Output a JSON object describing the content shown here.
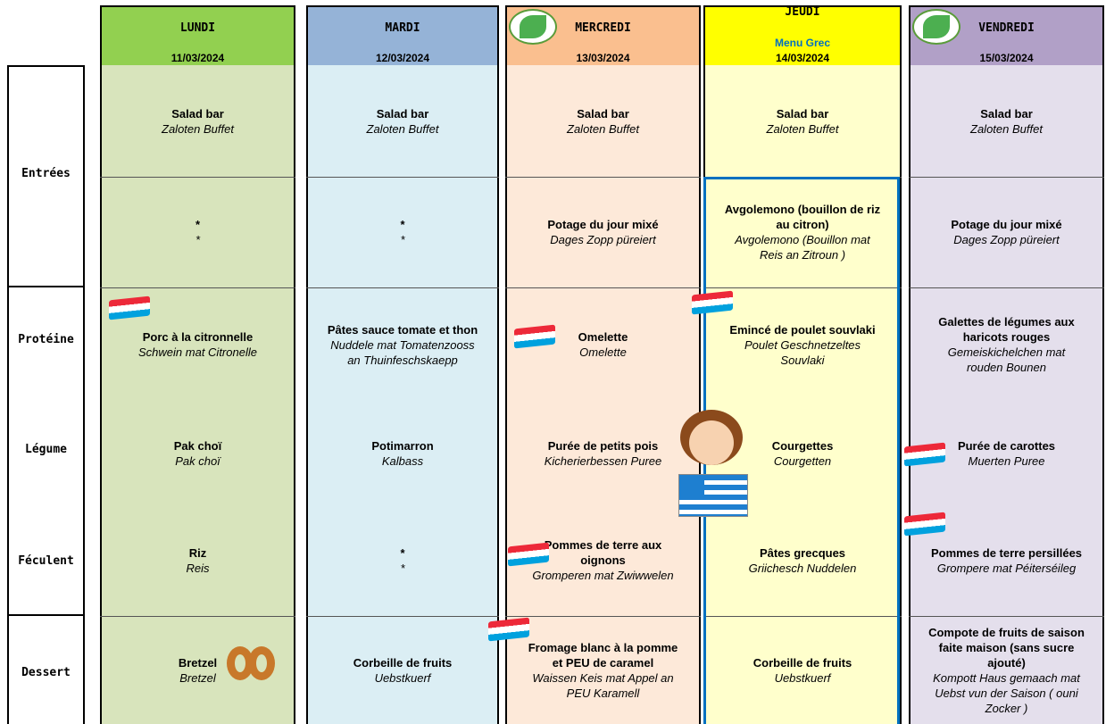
{
  "menu": {
    "days": [
      {
        "name": "LUNDI",
        "date": "11/03/2024"
      },
      {
        "name": "MARDI",
        "date": "12/03/2024"
      },
      {
        "name": "MERCREDI",
        "date": "13/03/2024"
      },
      {
        "name": "JEUDI",
        "note": "Menu Grec",
        "date": "14/03/2024"
      },
      {
        "name": "VENDREDI",
        "date": "15/03/2024"
      }
    ],
    "row_labels": [
      "Entrées",
      "Protéine",
      "Légume",
      "Féculent",
      "Dessert"
    ],
    "rows": [
      [
        {
          "fr": "Salad bar",
          "lb": "Zaloten Buffet"
        },
        {
          "fr": "Salad bar",
          "lb": "Zaloten Buffet"
        },
        {
          "fr": "Salad bar",
          "lb": "Zaloten Buffet"
        },
        {
          "fr": "Salad bar",
          "lb": "Zaloten Buffet"
        },
        {
          "fr": "Salad bar",
          "lb": "Zaloten Buffet"
        }
      ],
      [
        {
          "fr": "*",
          "lb": "*"
        },
        {
          "fr": "*",
          "lb": "*"
        },
        {
          "fr": "Potage du jour mixé",
          "lb": "Dages Zopp püreiert"
        },
        {
          "fr": "Avgolemono (bouillon de riz au citron)",
          "lb": "Avgolemono (Bouillon mat Reis an Zitroun )"
        },
        {
          "fr": "Potage du jour mixé",
          "lb": "Dages Zopp püreiert"
        }
      ],
      [
        {
          "fr": "Porc à la citronnelle",
          "lb": "Schwein mat Citronelle"
        },
        {
          "fr": "Pâtes sauce tomate et thon",
          "lb": "Nuddele mat Tomatenzooss an Thuinfeschskaepp"
        },
        {
          "fr": "Omelette",
          "lb": "Omelette"
        },
        {
          "fr": "Emincé de poulet souvlaki",
          "lb": "Poulet Geschnetzeltes Souvlaki"
        },
        {
          "fr": "Galettes de légumes aux haricots rouges",
          "lb": "Gemeiskichelchen mat rouden Bounen"
        }
      ],
      [
        {
          "fr": "Pak choï",
          "lb": "Pak choï"
        },
        {
          "fr": "Potimarron",
          "lb": "Kalbass"
        },
        {
          "fr": "Purée de petits pois",
          "lb": "Kicherierbessen Puree"
        },
        {
          "fr": "Courgettes",
          "lb": "Courgetten"
        },
        {
          "fr": "Purée de carottes",
          "lb": "Muerten Puree"
        }
      ],
      [
        {
          "fr": "Riz",
          "lb": "Reis"
        },
        {
          "fr": "*",
          "lb": "*"
        },
        {
          "fr": "Pommes de terre aux oignons",
          "lb": "Gromperen mat Zwiwwelen"
        },
        {
          "fr": "Pâtes grecques",
          "lb": "Griichesch Nuddelen"
        },
        {
          "fr": "Pommes de terre persillées",
          "lb": "Grompere mat Péiterséileg"
        }
      ],
      [
        {
          "fr": "Bretzel",
          "lb": "Bretzel"
        },
        {
          "fr": "Corbeille de fruits",
          "lb": "Uebstkuerf"
        },
        {
          "fr": "Fromage blanc à la pomme et PEU de caramel",
          "lb": "Waissen Keis mat Appel an PEU  Karamell"
        },
        {
          "fr": "Corbeille de fruits",
          "lb": "Uebstkuerf"
        },
        {
          "fr": "Compote de fruits de saison faite maison (sans sucre ajouté)",
          "lb": "Kompott  Haus gemaach mat Uebst vun der Saison ( ouni Zocker )"
        }
      ]
    ]
  }
}
